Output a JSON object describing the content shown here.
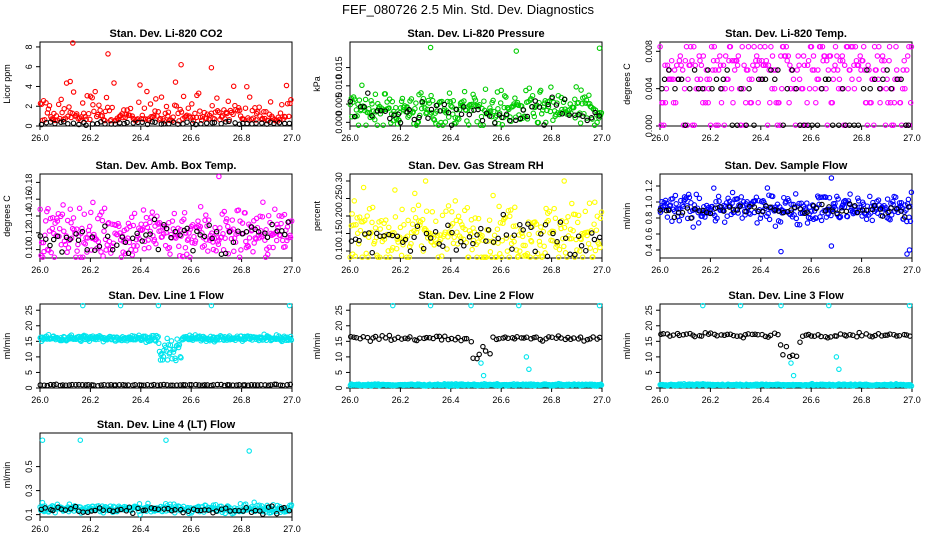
{
  "figure_title": "FEF_080726  2.5 Min. Std. Dev. Diagnostics",
  "colors": {
    "red": "#ff0000",
    "green": "#00cc00",
    "magenta": "#ff00ff",
    "yellow": "#ffff00",
    "blue": "#0000ff",
    "cyan": "#00e5ee",
    "black": "#000000"
  },
  "chart_data": [
    {
      "type": "scatter",
      "title": "Stan. Dev. Li-820 CO2",
      "ylabel": "Licor ppm",
      "xlim": [
        26.0,
        27.0
      ],
      "ylim": [
        0,
        8.5
      ],
      "xticks": [
        26.0,
        26.2,
        26.4,
        26.6,
        26.8,
        27.0
      ],
      "xtick_labels": [
        "26.0",
        "26.2",
        "26.4",
        "26.6",
        "26.8",
        "27.0"
      ],
      "yticks": [
        0,
        2,
        4,
        6,
        8
      ],
      "ytick_labels": [
        "0",
        "2",
        "4",
        "6",
        "8"
      ],
      "series": [
        {
          "name": "main",
          "color": "red",
          "n": 220,
          "base": 0.5,
          "spread": 1.4,
          "skew": 1.2,
          "outliers": [
            [
              26.13,
              8.4
            ],
            [
              26.27,
              7.3
            ],
            [
              26.56,
              6.2
            ],
            [
              26.68,
              5.9
            ],
            [
              26.12,
              4.5
            ]
          ]
        },
        {
          "name": "black",
          "color": "black",
          "n": 55,
          "base": 0.3,
          "spread": 0.1
        }
      ]
    },
    {
      "type": "scatter",
      "title": "Stan. Dev. Li-820 Pressure",
      "ylabel": "kPa",
      "xlim": [
        26.0,
        27.0
      ],
      "ylim": [
        -0.001,
        0.022
      ],
      "xticks": [
        26.0,
        26.2,
        26.4,
        26.6,
        26.8,
        27.0
      ],
      "xtick_labels": [
        "26.0",
        "26.2",
        "26.4",
        "26.6",
        "26.8",
        "27.0"
      ],
      "yticks": [
        0,
        0.005,
        0.01,
        0.015
      ],
      "ytick_labels": [
        "0.000",
        "0.005",
        "0.010",
        "0.015"
      ],
      "series": [
        {
          "name": "main",
          "color": "green",
          "n": 300,
          "base": 0.0035,
          "spread": 0.0025,
          "skew": 0,
          "outliers": [
            [
              26.32,
              0.0205
            ],
            [
              26.66,
              0.0195
            ],
            [
              26.99,
              0.0203
            ]
          ]
        },
        {
          "name": "black",
          "color": "black",
          "n": 60,
          "base": 0.003,
          "spread": 0.002
        }
      ]
    },
    {
      "type": "scatter",
      "title": "Stan. Dev. Li-820 Temp.",
      "ylabel": "degrees C",
      "xlim": [
        26.0,
        27.0
      ],
      "ylim": [
        0,
        0.009
      ],
      "xticks": [
        26.0,
        26.2,
        26.4,
        26.6,
        26.8,
        27.0
      ],
      "xtick_labels": [
        "26.0",
        "26.2",
        "26.4",
        "26.6",
        "26.8",
        "27.0"
      ],
      "yticks": [
        0,
        0.004,
        0.008
      ],
      "ytick_labels": [
        "0.000",
        "0.004",
        "0.008"
      ],
      "series": [
        {
          "name": "main",
          "color": "magenta",
          "n": 280,
          "levels": [
            0.0,
            0.0025,
            0.004,
            0.005,
            0.006,
            0.0065,
            0.007,
            0.0075,
            0.0085
          ]
        },
        {
          "name": "black",
          "color": "black",
          "n": 60,
          "levels": [
            0.0,
            0.004,
            0.005,
            0.006
          ]
        }
      ]
    },
    {
      "type": "scatter",
      "title": "Stan. Dev. Amb. Box Temp.",
      "ylabel": "degrees C",
      "xlim": [
        26.0,
        27.0
      ],
      "ylim": [
        0.09,
        0.19
      ],
      "xticks": [
        26.0,
        26.2,
        26.4,
        26.6,
        26.8,
        27.0
      ],
      "xtick_labels": [
        "26.0",
        "26.2",
        "26.4",
        "26.6",
        "26.8",
        "27.0"
      ],
      "yticks": [
        0.1,
        0.12,
        0.14,
        0.16,
        0.18
      ],
      "ytick_labels": [
        "0.10",
        "0.12",
        "0.14",
        "0.16",
        "0.18"
      ],
      "series": [
        {
          "name": "main",
          "color": "magenta",
          "n": 320,
          "base": 0.12,
          "spread": 0.016,
          "skew": 0,
          "outliers": [
            [
              26.71,
              0.187
            ]
          ]
        },
        {
          "name": "black",
          "color": "black",
          "n": 60,
          "base": 0.115,
          "spread": 0.01
        }
      ]
    },
    {
      "type": "scatter",
      "title": "Stan. Dev. Gas Stream RH",
      "ylabel": "percent",
      "xlim": [
        26.0,
        27.0
      ],
      "ylim": [
        0.08,
        0.32
      ],
      "xticks": [
        26.0,
        26.2,
        26.4,
        26.6,
        26.8,
        27.0
      ],
      "xtick_labels": [
        "26.0",
        "26.2",
        "26.4",
        "26.6",
        "26.8",
        "27.0"
      ],
      "yticks": [
        0.1,
        0.15,
        0.2,
        0.25,
        0.3
      ],
      "ytick_labels": [
        "0.10",
        "0.15",
        "0.20",
        "0.25",
        "0.30"
      ],
      "series": [
        {
          "name": "main",
          "color": "yellow",
          "n": 300,
          "base": 0.15,
          "spread": 0.045,
          "skew": 0,
          "outliers": [
            [
              26.3,
              0.3
            ],
            [
              26.85,
              0.3
            ]
          ]
        },
        {
          "name": "black",
          "color": "black",
          "n": 60,
          "base": 0.13,
          "spread": 0.03
        }
      ]
    },
    {
      "type": "scatter",
      "title": "Stan. Dev. Sample Flow",
      "ylabel": "ml/min",
      "xlim": [
        26.0,
        27.0
      ],
      "ylim": [
        0.3,
        1.35
      ],
      "xticks": [
        26.0,
        26.2,
        26.4,
        26.6,
        26.8,
        27.0
      ],
      "xtick_labels": [
        "26.0",
        "26.2",
        "26.4",
        "26.6",
        "26.8",
        "27.0"
      ],
      "yticks": [
        0.4,
        0.6,
        0.8,
        1.0,
        1.2
      ],
      "ytick_labels": [
        "0.4",
        "0.6",
        "0.8",
        "1.0",
        "1.2"
      ],
      "series": [
        {
          "name": "main",
          "color": "blue",
          "n": 320,
          "base": 0.92,
          "spread": 0.09,
          "skew": 0,
          "outliers": [
            [
              26.68,
              1.3
            ],
            [
              26.48,
              0.38
            ],
            [
              26.68,
              0.45
            ],
            [
              26.99,
              0.4
            ],
            [
              26.98,
              0.35
            ]
          ]
        },
        {
          "name": "black",
          "color": "black",
          "n": 60,
          "base": 0.9,
          "spread": 0.04
        }
      ]
    },
    {
      "type": "scatter",
      "title": "Stan. Dev. Line 1 Flow",
      "ylabel": "ml/min",
      "xlim": [
        26.0,
        27.0
      ],
      "ylim": [
        0,
        27
      ],
      "xticks": [
        26.0,
        26.2,
        26.4,
        26.6,
        26.8,
        27.0
      ],
      "xtick_labels": [
        "26.0",
        "26.2",
        "26.4",
        "26.6",
        "26.8",
        "27.0"
      ],
      "yticks": [
        0,
        5,
        10,
        15,
        20,
        25
      ],
      "ytick_labels": [
        "0",
        "5",
        "10",
        "15",
        "20",
        "25"
      ],
      "series": [
        {
          "name": "main",
          "color": "cyan",
          "n": 340,
          "base": 16,
          "spread": 0.5,
          "dip": true,
          "outliers": [
            [
              26.17,
              26.5
            ],
            [
              26.32,
              26.5
            ],
            [
              26.47,
              26.5
            ],
            [
              26.68,
              26.5
            ],
            [
              26.99,
              26.5
            ]
          ]
        },
        {
          "name": "black",
          "color": "black",
          "n": 80,
          "base": 1.0,
          "spread": 0.1
        }
      ]
    },
    {
      "type": "scatter",
      "title": "Stan. Dev. Line 2 Flow",
      "ylabel": "ml/min",
      "xlim": [
        26.0,
        27.0
      ],
      "ylim": [
        0,
        27
      ],
      "xticks": [
        26.0,
        26.2,
        26.4,
        26.6,
        26.8,
        27.0
      ],
      "xtick_labels": [
        "26.0",
        "26.2",
        "26.4",
        "26.6",
        "26.8",
        "27.0"
      ],
      "yticks": [
        0,
        5,
        10,
        15,
        20,
        25
      ],
      "ytick_labels": [
        "0",
        "5",
        "10",
        "15",
        "20",
        "25"
      ],
      "series": [
        {
          "name": "main",
          "color": "cyan",
          "n": 340,
          "base": 1.0,
          "spread": 0.15,
          "outliers": [
            [
              26.17,
              26.5
            ],
            [
              26.32,
              26.5
            ],
            [
              26.48,
              26.5
            ],
            [
              26.67,
              26.5
            ],
            [
              26.99,
              26.5
            ],
            [
              26.52,
              8
            ],
            [
              26.53,
              4
            ],
            [
              26.7,
              10
            ],
            [
              26.71,
              6
            ]
          ]
        },
        {
          "name": "black",
          "color": "black",
          "n": 80,
          "base": 16,
          "spread": 0.4,
          "dip": true
        }
      ]
    },
    {
      "type": "scatter",
      "title": "Stan. Dev. Line 3 Flow",
      "ylabel": "ml/min",
      "xlim": [
        26.0,
        27.0
      ],
      "ylim": [
        0,
        27
      ],
      "xticks": [
        26.0,
        26.2,
        26.4,
        26.6,
        26.8,
        27.0
      ],
      "xtick_labels": [
        "26.0",
        "26.2",
        "26.4",
        "26.6",
        "26.8",
        "27.0"
      ],
      "yticks": [
        0,
        5,
        10,
        15,
        20,
        25
      ],
      "ytick_labels": [
        "0",
        "5",
        "10",
        "15",
        "20",
        "25"
      ],
      "series": [
        {
          "name": "main",
          "color": "cyan",
          "n": 340,
          "base": 1.0,
          "spread": 0.15,
          "outliers": [
            [
              26.17,
              26.5
            ],
            [
              26.32,
              26.5
            ],
            [
              26.48,
              26.5
            ],
            [
              26.67,
              26.5
            ],
            [
              26.99,
              26.5
            ],
            [
              26.52,
              8
            ],
            [
              26.53,
              4
            ],
            [
              26.7,
              10
            ],
            [
              26.71,
              6
            ]
          ]
        },
        {
          "name": "black",
          "color": "black",
          "n": 80,
          "base": 17,
          "spread": 0.4,
          "dip": true
        }
      ]
    },
    {
      "type": "scatter",
      "title": "Stan. Dev. Line 4 (LT) Flow",
      "ylabel": "ml/min",
      "xlim": [
        26.0,
        27.0
      ],
      "ylim": [
        0.08,
        0.78
      ],
      "xticks": [
        26.0,
        26.2,
        26.4,
        26.6,
        26.8,
        27.0
      ],
      "xtick_labels": [
        "26.0",
        "26.2",
        "26.4",
        "26.6",
        "26.8",
        "27.0"
      ],
      "yticks": [
        0.1,
        0.3,
        0.5
      ],
      "ytick_labels": [
        "0.1",
        "0.3",
        "0.5"
      ],
      "series": [
        {
          "name": "main",
          "color": "cyan",
          "n": 320,
          "base": 0.15,
          "spread": 0.018,
          "skew": 0,
          "outliers": [
            [
              26.01,
              0.72
            ],
            [
              26.16,
              0.72
            ],
            [
              26.5,
              0.72
            ],
            [
              26.83,
              0.63
            ],
            [
              26.01,
              0.2
            ]
          ]
        },
        {
          "name": "black",
          "color": "black",
          "n": 60,
          "base": 0.14,
          "spread": 0.015
        }
      ]
    }
  ]
}
